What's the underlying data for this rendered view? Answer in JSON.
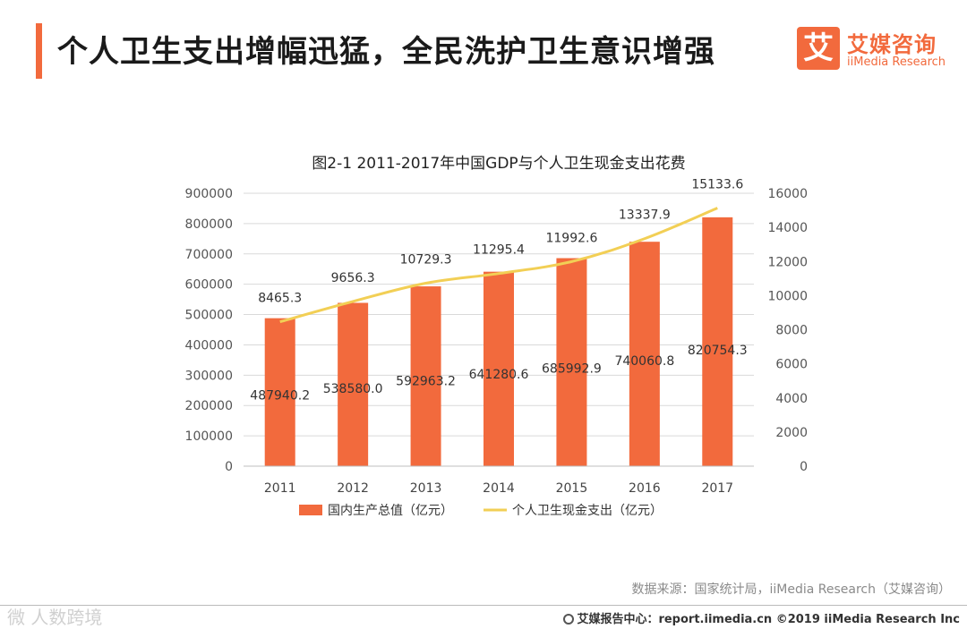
{
  "page": {
    "title": "个人卫生支出增幅迅猛，全民洗护卫生意识增强",
    "logo_mark": "艾",
    "logo_cn": "艾媒咨询",
    "logo_en": "iiMedia Research",
    "source": "数据来源：国家统计局，iiMedia Research（艾媒咨询）",
    "watermark": "微 人数跨境",
    "footer": "艾媒报告中心：report.iimedia.cn ©2019 iiMedia Research Inc"
  },
  "colors": {
    "bar": "#f26a3d",
    "line": "#f2cf55",
    "accent": "#f26a3d"
  },
  "chart_data": {
    "type": "bar",
    "title": "图2-1 2011-2017年中国GDP与个人卫生现金支出花费",
    "categories": [
      "2011",
      "2012",
      "2013",
      "2014",
      "2015",
      "2016",
      "2017"
    ],
    "series": [
      {
        "name": "国内生产总值（亿元）",
        "type": "bar",
        "axis": "left",
        "values": [
          487940.2,
          538580.0,
          592963.2,
          641280.6,
          685992.9,
          740060.8,
          820754.3
        ],
        "labels": [
          "487940.2",
          "538580.0",
          "592963.2",
          "641280.6",
          "685992.9",
          "740060.8",
          "820754.3"
        ]
      },
      {
        "name": "个人卫生现金支出（亿元）",
        "type": "line",
        "axis": "right",
        "values": [
          8465.3,
          9656.3,
          10729.3,
          11295.4,
          11992.6,
          13337.9,
          15133.6
        ],
        "labels": [
          "8465.3",
          "9656.3",
          "10729.3",
          "11295.4",
          "11992.6",
          "13337.9",
          "15133.6"
        ]
      }
    ],
    "y_left": {
      "range": [
        0,
        900000
      ],
      "ticks": [
        "0",
        "100000",
        "200000",
        "300000",
        "400000",
        "500000",
        "600000",
        "700000",
        "800000",
        "900000"
      ]
    },
    "y_right": {
      "range": [
        0,
        16000
      ],
      "ticks": [
        "0",
        "2000",
        "4000",
        "6000",
        "8000",
        "10000",
        "12000",
        "14000",
        "16000"
      ]
    },
    "grid": true,
    "legend_position": "bottom"
  }
}
